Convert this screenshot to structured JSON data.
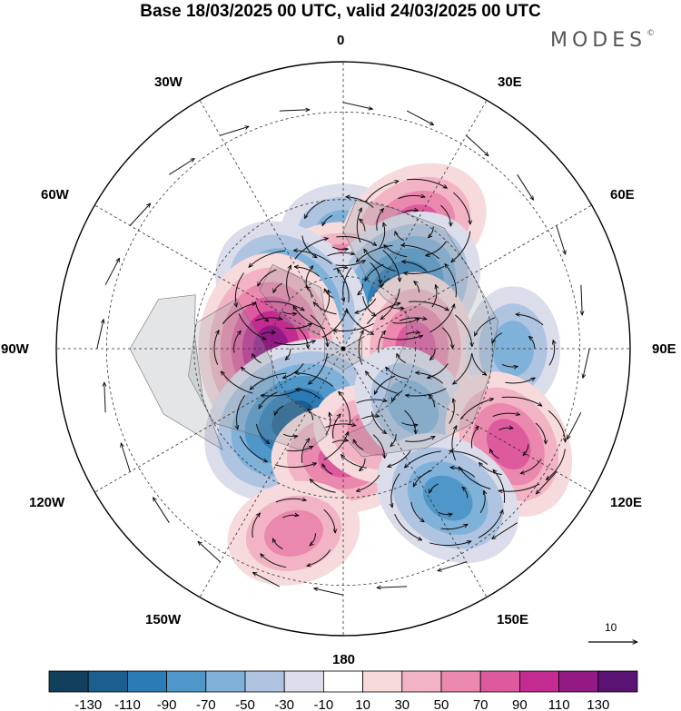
{
  "title": "Base 18/03/2025 00 UTC, valid 24/03/2025 00 UTC",
  "brand": "MODES",
  "brand_mark": "©",
  "meridian_labels": {
    "m0": "0",
    "m30e": "30E",
    "m60e": "60E",
    "m90e": "90E",
    "m120e": "120E",
    "m150e": "150E",
    "m180": "180",
    "m150w": "150W",
    "m120w": "120W",
    "m90w": "90W",
    "m60w": "60W",
    "m30w": "30W"
  },
  "vector_reference": "10",
  "colorbar": {
    "labels": [
      "-130",
      "-110",
      "-90",
      "-70",
      "-50",
      "-30",
      "-10",
      "10",
      "30",
      "50",
      "70",
      "90",
      "110",
      "130"
    ],
    "colors": [
      "#123f5c",
      "#1a5f8f",
      "#2a7bb6",
      "#4f97c9",
      "#7fb1d9",
      "#aec4e0",
      "#dcddeb",
      "#ffffff",
      "#f7dadc",
      "#f2b4c4",
      "#eb88ae",
      "#de5a9e",
      "#c32b90",
      "#931a85",
      "#5a1273"
    ]
  },
  "map": {
    "projection": "north-polar-stereographic",
    "anomalies": [
      {
        "lon": 0,
        "lat": 58,
        "value": -50
      },
      {
        "lon": 30,
        "lat": 52,
        "value": 80
      },
      {
        "lon": 0,
        "lat": 72,
        "value": 90
      },
      {
        "lon": 45,
        "lat": 68,
        "value": -110
      },
      {
        "lon": 315,
        "lat": 70,
        "value": -100
      },
      {
        "lon": 270,
        "lat": 70,
        "value": 120
      },
      {
        "lon": 90,
        "lat": 70,
        "value": 80
      },
      {
        "lon": 90,
        "lat": 45,
        "value": -50
      },
      {
        "lon": 215,
        "lat": 66,
        "value": -120
      },
      {
        "lon": 180,
        "lat": 60,
        "value": 70
      },
      {
        "lon": 160,
        "lat": 65,
        "value": 50
      },
      {
        "lon": 130,
        "lat": 65,
        "value": -60
      },
      {
        "lon": 120,
        "lat": 40,
        "value": 80
      },
      {
        "lon": 145,
        "lat": 42,
        "value": -80
      },
      {
        "lon": 195,
        "lat": 40,
        "value": 60
      }
    ]
  }
}
